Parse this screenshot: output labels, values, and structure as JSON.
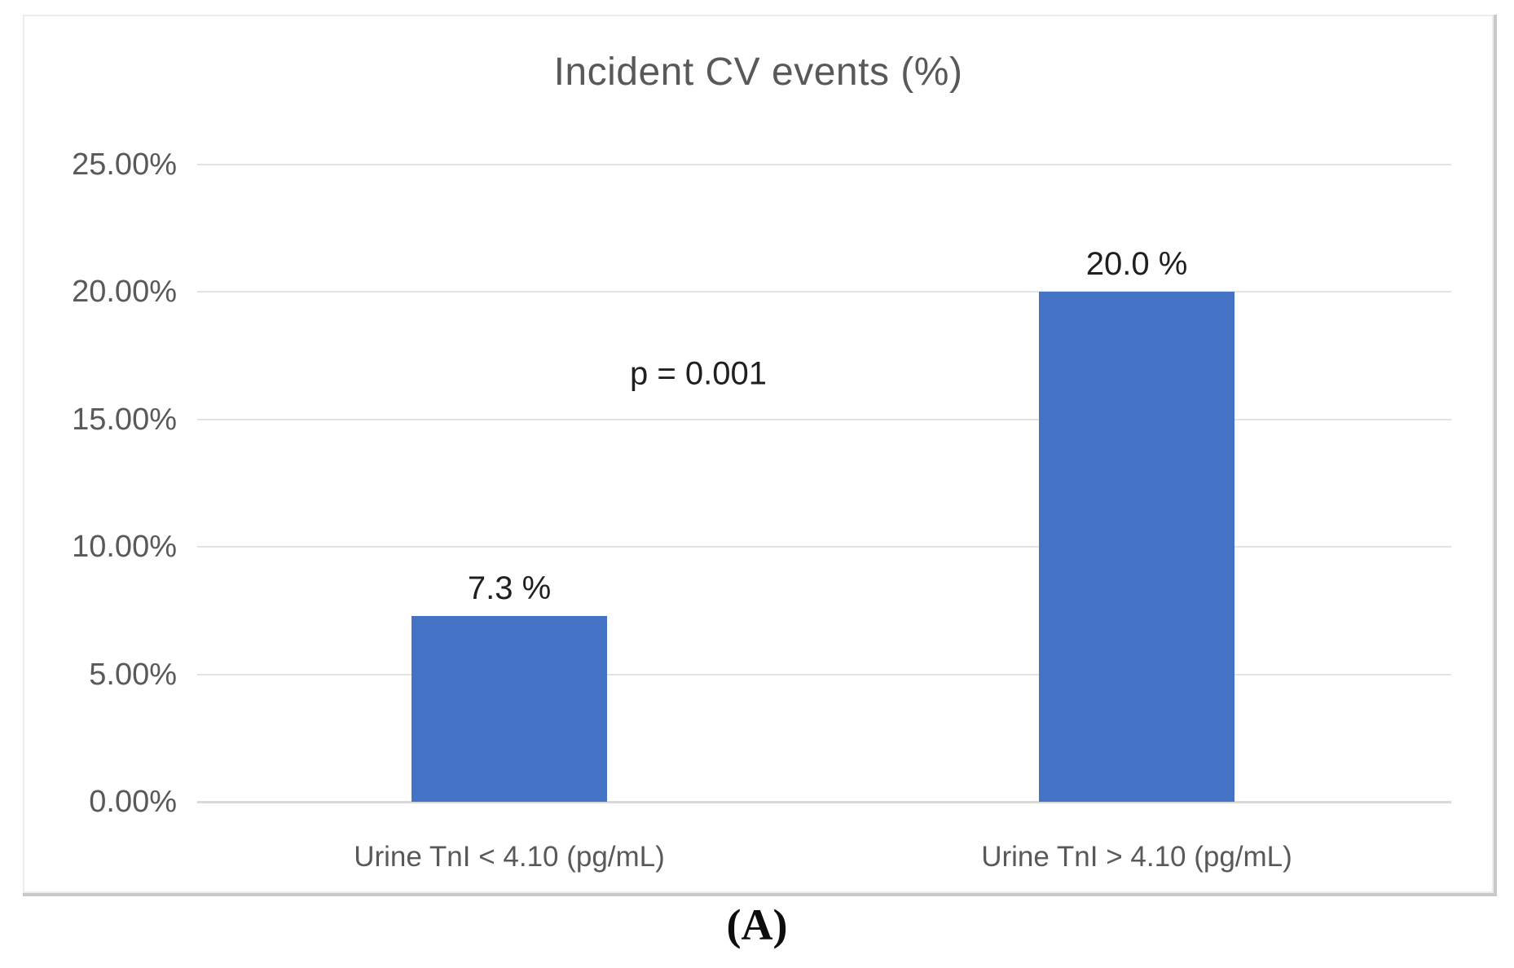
{
  "figure": {
    "caption": "(A)"
  },
  "chart_data": {
    "type": "bar",
    "title": "Incident CV events (%)",
    "categories": [
      "Urine TnI < 4.10 (pg/mL)",
      "Urine TnI > 4.10 (pg/mL)"
    ],
    "values": [
      7.3,
      20.0
    ],
    "data_labels": [
      "7.3 %",
      "20.0 %"
    ],
    "annotation": "p = 0.001",
    "xlabel": "",
    "ylabel": "",
    "ylim": [
      0,
      25
    ],
    "ytick_step": 5,
    "ytick_labels": [
      "0.00%",
      "5.00%",
      "10.00%",
      "15.00%",
      "20.00%",
      "25.00%"
    ],
    "grid": true,
    "legend": "none",
    "colors": {
      "bar_fill": "#4472c4",
      "title_text": "#595959",
      "axis_text": "#595959",
      "data_label_text": "#1f1f1f",
      "gridline": "#e2e2e2",
      "baseline": "#d9d9d9",
      "frame_border": "#ececec",
      "frame_shadow": "#c9c9c9",
      "background": "#ffffff"
    }
  }
}
